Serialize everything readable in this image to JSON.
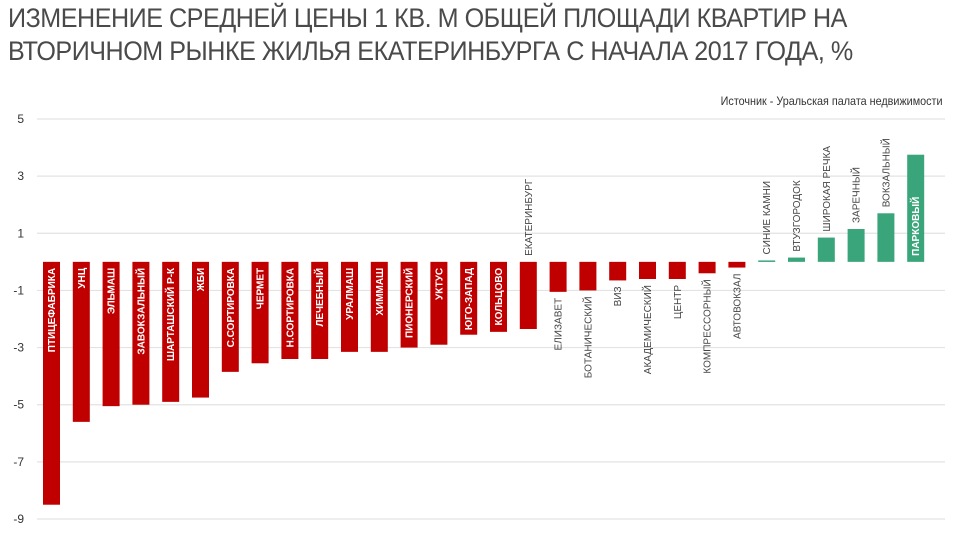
{
  "header": {
    "title": "ИЗМЕНЕНИЕ СРЕДНЕЙ ЦЕНЫ 1 КВ. М ОБЩЕЙ ПЛОЩАДИ КВАРТИР НА\nВТОРИЧНОМ РЫНКЕ ЖИЛЬЯ ЕКАТЕРИНБУРГА С НАЧАЛА 2017 ГОДА, %",
    "source": "Источник - Уральская палата недвижимости"
  },
  "colors": {
    "negative": "#c00000",
    "positive": "#3aa57a",
    "grid": "#e3e3e3"
  },
  "chart_data": {
    "type": "bar",
    "title": "Изменение средней цены 1 кв. м общей площади квартир на вторичном рынке жилья Екатеринбурга с начала 2017 года, %",
    "xlabel": "",
    "ylabel": "%",
    "ylim": [
      -9,
      5
    ],
    "yticks": [
      5,
      3,
      1,
      -1,
      -3,
      -5,
      -7,
      -9
    ],
    "grid": true,
    "legend": null,
    "annotation": "Источник - Уральская палата недвижимости",
    "categories": [
      "ПТИЦЕФАБРИКА",
      "УНЦ",
      "ЭЛЬМАШ",
      "ЗАВОКЗАЛЬНЫЙ",
      "ШАРТАШСКИЙ Р-К",
      "ЖБИ",
      "С.СОРТИРОВКА",
      "ЧЕРМЕТ",
      "Н.СОРТИРОВКА",
      "ЛЕЧЕБНЫЙ",
      "УРАЛМАШ",
      "ХИММАШ",
      "ПИОНЕРСКИЙ",
      "УКТУС",
      "ЮГО-ЗАПАД",
      "КОЛЬЦОВО",
      "ЕКАТЕРИНБУРГ",
      "ЕЛИЗАВЕТ",
      "БОТАНИЧЕСКИЙ",
      "ВИЗ",
      "АКАДЕМИЧЕСКИЙ",
      "ЦЕНТР",
      "КОМПРЕССОРНЫЙ",
      "АВТОВОКЗАЛ",
      "СИНИЕ КАМНИ",
      "ВТУЗГОРОДОК",
      "ШИРОКАЯ РЕЧКА",
      "ЗАРЕЧНЫЙ",
      "ВОКЗАЛЬНЫЙ",
      "ПАРКОВЫЙ"
    ],
    "values": [
      -8.5,
      -5.6,
      -5.05,
      -5.0,
      -4.9,
      -4.75,
      -3.85,
      -3.55,
      -3.4,
      -3.4,
      -3.15,
      -3.15,
      -3.0,
      -2.9,
      -2.55,
      -2.45,
      -2.35,
      -1.05,
      -1.0,
      -0.65,
      -0.6,
      -0.6,
      -0.4,
      -0.2,
      0.05,
      0.15,
      0.85,
      1.15,
      1.7,
      3.75
    ],
    "label_inside": [
      true,
      true,
      true,
      true,
      true,
      true,
      true,
      true,
      true,
      true,
      true,
      true,
      true,
      true,
      true,
      true,
      false,
      false,
      false,
      false,
      false,
      false,
      false,
      false,
      false,
      false,
      false,
      false,
      false,
      true
    ]
  }
}
